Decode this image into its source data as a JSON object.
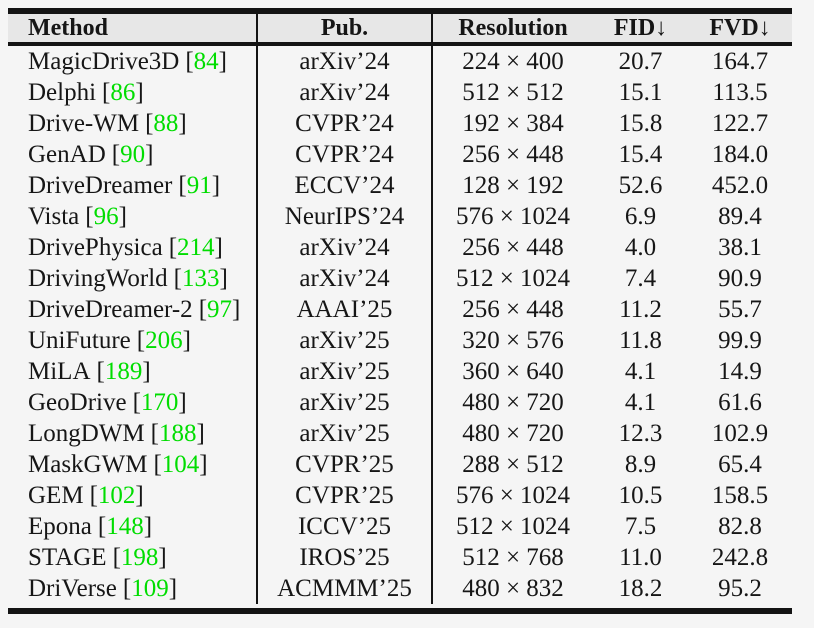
{
  "table": {
    "columns": [
      {
        "label": "Method"
      },
      {
        "label": "Pub."
      },
      {
        "label": "Resolution"
      },
      {
        "label": "FID↓"
      },
      {
        "label": "FVD↓"
      }
    ],
    "citation_brackets": {
      "open": "[",
      "close": "]"
    },
    "rows": [
      {
        "method": "MagicDrive3D",
        "cite": "84",
        "pub": "arXiv’24",
        "resolution": "224 × 400",
        "fid": "20.7",
        "fvd": "164.7"
      },
      {
        "method": "Delphi",
        "cite": "86",
        "pub": "arXiv’24",
        "resolution": "512 × 512",
        "fid": "15.1",
        "fvd": "113.5"
      },
      {
        "method": "Drive-WM",
        "cite": "88",
        "pub": "CVPR’24",
        "resolution": "192 × 384",
        "fid": "15.8",
        "fvd": "122.7"
      },
      {
        "method": "GenAD",
        "cite": "90",
        "pub": "CVPR’24",
        "resolution": "256 × 448",
        "fid": "15.4",
        "fvd": "184.0"
      },
      {
        "method": "DriveDreamer",
        "cite": "91",
        "pub": "ECCV’24",
        "resolution": "128 × 192",
        "fid": "52.6",
        "fvd": "452.0"
      },
      {
        "method": "Vista",
        "cite": "96",
        "pub": "NeurIPS’24",
        "resolution": "576 × 1024",
        "fid": "6.9",
        "fvd": "89.4"
      },
      {
        "method": "DrivePhysica",
        "cite": "214",
        "pub": "arXiv’24",
        "resolution": "256 × 448",
        "fid": "4.0",
        "fvd": "38.1"
      },
      {
        "method": "DrivingWorld",
        "cite": "133",
        "pub": "arXiv’24",
        "resolution": "512 × 1024",
        "fid": "7.4",
        "fvd": "90.9"
      },
      {
        "method": "DriveDreamer-2",
        "cite": "97",
        "pub": "AAAI’25",
        "resolution": "256 × 448",
        "fid": "11.2",
        "fvd": "55.7"
      },
      {
        "method": "UniFuture",
        "cite": "206",
        "pub": "arXiv’25",
        "resolution": "320 × 576",
        "fid": "11.8",
        "fvd": "99.9"
      },
      {
        "method": "MiLA",
        "cite": "189",
        "pub": "arXiv’25",
        "resolution": "360 × 640",
        "fid": "4.1",
        "fvd": "14.9"
      },
      {
        "method": "GeoDrive",
        "cite": "170",
        "pub": "arXiv’25",
        "resolution": "480 × 720",
        "fid": "4.1",
        "fvd": "61.6"
      },
      {
        "method": "LongDWM",
        "cite": "188",
        "pub": "arXiv’25",
        "resolution": "480 × 720",
        "fid": "12.3",
        "fvd": "102.9"
      },
      {
        "method": "MaskGWM",
        "cite": "104",
        "pub": "CVPR’25",
        "resolution": "288 × 512",
        "fid": "8.9",
        "fvd": "65.4"
      },
      {
        "method": "GEM",
        "cite": "102",
        "pub": "CVPR’25",
        "resolution": "576 × 1024",
        "fid": "10.5",
        "fvd": "158.5"
      },
      {
        "method": "Epona",
        "cite": "148",
        "pub": "ICCV’25",
        "resolution": "512 × 1024",
        "fid": "7.5",
        "fvd": "82.8"
      },
      {
        "method": "STAGE",
        "cite": "198",
        "pub": "IROS’25",
        "resolution": "512 × 768",
        "fid": "11.0",
        "fvd": "242.8"
      },
      {
        "method": "DriVerse",
        "cite": "109",
        "pub": "ACMMM’25",
        "resolution": "480 × 832",
        "fid": "18.2",
        "fvd": "95.2"
      }
    ]
  },
  "colors": {
    "page_bg": "#f5f5f5",
    "header_bg": "#e7e7e7",
    "rule_color": "#141414",
    "text_color": "#161616",
    "citation_green": "#00dd00"
  }
}
